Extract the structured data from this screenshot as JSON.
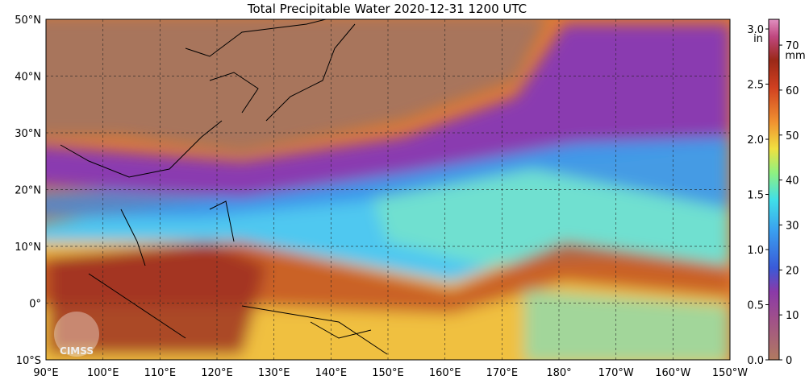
{
  "title": "Total Precipitable Water  2020-12-31 1200 UTC",
  "map": {
    "lat_labels": [
      "50°N",
      "40°N",
      "30°N",
      "20°N",
      "10°N",
      "0°",
      "10°S"
    ],
    "lon_labels": [
      "90°E",
      "100°E",
      "110°E",
      "120°E",
      "130°E",
      "140°E",
      "150°E",
      "160°E",
      "170°E",
      "180°",
      "170°W",
      "160°W",
      "150°W"
    ]
  },
  "colorbar": {
    "inch_unit": "in",
    "mm_unit": "mm",
    "inch_ticks": [
      {
        "value": 3,
        "label": "3.0"
      },
      {
        "value": 2.5,
        "label": "2.5"
      },
      {
        "value": 2,
        "label": "2.0"
      },
      {
        "value": 1.5,
        "label": "1.5"
      },
      {
        "value": 1,
        "label": "1.0"
      },
      {
        "value": 0.5,
        "label": "0.5"
      },
      {
        "value": 0,
        "label": "0.0"
      }
    ],
    "mm_ticks": [
      70,
      60,
      50,
      40,
      30,
      20,
      10,
      0
    ]
  },
  "logo": "CIMSS"
}
